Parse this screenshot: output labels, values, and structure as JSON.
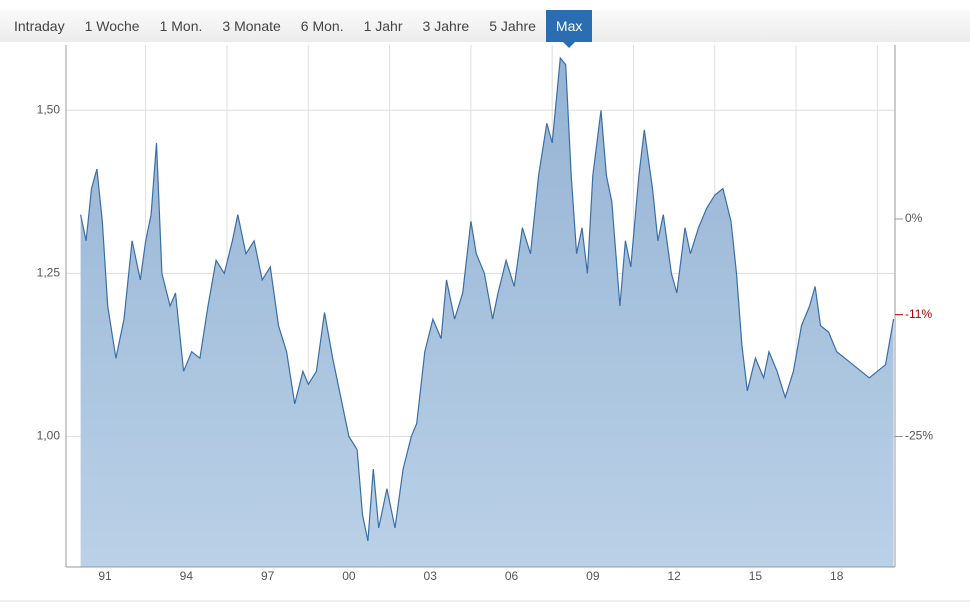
{
  "tabs": {
    "items": [
      "Intraday",
      "1 Woche",
      "1 Mon.",
      "3 Monate",
      "6 Mon.",
      "1 Jahr",
      "3 Jahre",
      "5 Jahre",
      "Max"
    ],
    "active": "Max"
  },
  "chart_data": {
    "type": "area",
    "color": "#3a6ea5",
    "fill": "#a6c0dc",
    "grid": true,
    "x": [
      1990.6,
      1990.8,
      1991.0,
      1991.2,
      1991.4,
      1991.6,
      1991.9,
      1992.2,
      1992.5,
      1992.8,
      1993.0,
      1993.2,
      1993.4,
      1993.6,
      1993.9,
      1994.1,
      1994.4,
      1994.7,
      1995.0,
      1995.3,
      1995.6,
      1995.9,
      1996.2,
      1996.4,
      1996.7,
      1997.0,
      1997.3,
      1997.6,
      1997.9,
      1998.2,
      1998.5,
      1998.8,
      1999.0,
      1999.3,
      1999.6,
      1999.9,
      2000.2,
      2000.5,
      2000.8,
      2001.0,
      2001.2,
      2001.4,
      2001.6,
      2001.9,
      2002.2,
      2002.5,
      2002.8,
      2003.0,
      2003.3,
      2003.6,
      2003.9,
      2004.1,
      2004.4,
      2004.7,
      2005.0,
      2005.2,
      2005.5,
      2005.8,
      2006.0,
      2006.3,
      2006.6,
      2006.9,
      2007.2,
      2007.5,
      2007.8,
      2008.0,
      2008.3,
      2008.5,
      2008.7,
      2008.9,
      2009.1,
      2009.3,
      2009.5,
      2009.8,
      2010.0,
      2010.2,
      2010.5,
      2010.7,
      2010.9,
      2011.2,
      2011.4,
      2011.7,
      2011.9,
      2012.1,
      2012.4,
      2012.6,
      2012.9,
      2013.1,
      2013.4,
      2013.7,
      2014.0,
      2014.3,
      2014.6,
      2014.8,
      2015.0,
      2015.2,
      2015.5,
      2015.8,
      2016.0,
      2016.3,
      2016.6,
      2016.9,
      2017.2,
      2017.5,
      2017.7,
      2017.9,
      2018.2,
      2018.5,
      2018.8,
      2019.1,
      2019.4,
      2019.7,
      2020.0,
      2020.3,
      2020.6
    ],
    "values": [
      1.34,
      1.3,
      1.38,
      1.41,
      1.33,
      1.2,
      1.12,
      1.18,
      1.3,
      1.24,
      1.3,
      1.34,
      1.45,
      1.25,
      1.2,
      1.22,
      1.1,
      1.13,
      1.12,
      1.2,
      1.27,
      1.25,
      1.3,
      1.34,
      1.28,
      1.3,
      1.24,
      1.26,
      1.17,
      1.13,
      1.05,
      1.1,
      1.08,
      1.1,
      1.19,
      1.12,
      1.06,
      1.0,
      0.98,
      0.88,
      0.84,
      0.95,
      0.86,
      0.92,
      0.86,
      0.95,
      1.0,
      1.02,
      1.13,
      1.18,
      1.15,
      1.24,
      1.18,
      1.22,
      1.33,
      1.28,
      1.25,
      1.18,
      1.22,
      1.27,
      1.23,
      1.32,
      1.28,
      1.4,
      1.48,
      1.45,
      1.58,
      1.57,
      1.4,
      1.28,
      1.32,
      1.25,
      1.4,
      1.5,
      1.4,
      1.36,
      1.2,
      1.3,
      1.26,
      1.4,
      1.47,
      1.38,
      1.3,
      1.34,
      1.25,
      1.22,
      1.32,
      1.28,
      1.32,
      1.35,
      1.37,
      1.38,
      1.33,
      1.25,
      1.14,
      1.07,
      1.12,
      1.09,
      1.13,
      1.1,
      1.06,
      1.1,
      1.17,
      1.2,
      1.23,
      1.17,
      1.16,
      1.13,
      1.12,
      1.11,
      1.1,
      1.09,
      1.1,
      1.11,
      1.18
    ],
    "xlim": [
      1990.06,
      2020.65
    ],
    "xticks": [
      {
        "value": 1991,
        "label": "91"
      },
      {
        "value": 1994,
        "label": "94"
      },
      {
        "value": 1997,
        "label": "97"
      },
      {
        "value": 2000,
        "label": "00"
      },
      {
        "value": 2003,
        "label": "03"
      },
      {
        "value": 2006,
        "label": "06"
      },
      {
        "value": 2009,
        "label": "09"
      },
      {
        "value": 2012,
        "label": "12"
      },
      {
        "value": 2015,
        "label": "15"
      },
      {
        "value": 2018,
        "label": "18"
      }
    ],
    "ylim": [
      0.8,
      1.6
    ],
    "yticks": [
      {
        "value": 1.0,
        "label": "1,00"
      },
      {
        "value": 1.25,
        "label": "1,25"
      },
      {
        "value": 1.5,
        "label": "1,50"
      }
    ],
    "y2lim": [
      -40,
      20
    ],
    "y2ticks": [
      {
        "value": 0,
        "label": "0%"
      },
      {
        "value": -25,
        "label": "-25%"
      }
    ],
    "annotations": [
      {
        "y2": -11,
        "text": "-11%",
        "color": "#b00000"
      }
    ]
  }
}
